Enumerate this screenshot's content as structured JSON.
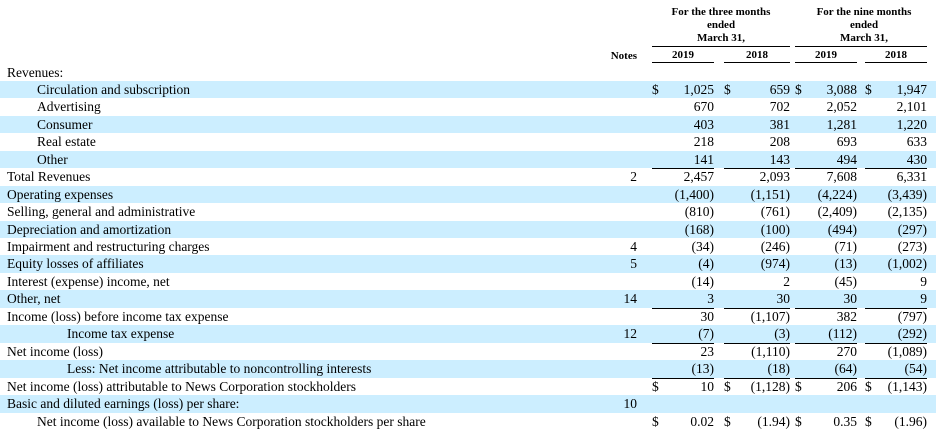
{
  "header": {
    "notes_label": "Notes",
    "periods": [
      {
        "line1": "For the three months",
        "line2": "ended",
        "line3": "March 31,",
        "years": [
          "2019",
          "2018"
        ]
      },
      {
        "line1": "For the nine months",
        "line2": "ended",
        "line3": "March 31,",
        "years": [
          "2019",
          "2018"
        ]
      }
    ]
  },
  "rows": [
    {
      "label": "Revenues:",
      "indent": 0,
      "note": "",
      "values": [
        "",
        "",
        "",
        ""
      ],
      "dollar": [
        false,
        false,
        false,
        false
      ],
      "ul": "none",
      "shaded": false
    },
    {
      "label": "Circulation and subscription",
      "indent": 1,
      "note": "",
      "values": [
        "1,025",
        "659",
        "3,088",
        "1,947"
      ],
      "dollar": [
        true,
        true,
        true,
        true
      ],
      "ul": "none",
      "shaded": true
    },
    {
      "label": "Advertising",
      "indent": 1,
      "note": "",
      "values": [
        "670",
        "702",
        "2,052",
        "2,101"
      ],
      "dollar": [
        false,
        false,
        false,
        false
      ],
      "ul": "none",
      "shaded": false
    },
    {
      "label": "Consumer",
      "indent": 1,
      "note": "",
      "values": [
        "403",
        "381",
        "1,281",
        "1,220"
      ],
      "dollar": [
        false,
        false,
        false,
        false
      ],
      "ul": "none",
      "shaded": true
    },
    {
      "label": "Real estate",
      "indent": 1,
      "note": "",
      "values": [
        "218",
        "208",
        "693",
        "633"
      ],
      "dollar": [
        false,
        false,
        false,
        false
      ],
      "ul": "none",
      "shaded": false
    },
    {
      "label": "Other",
      "indent": 1,
      "note": "",
      "values": [
        "141",
        "143",
        "494",
        "430"
      ],
      "dollar": [
        false,
        false,
        false,
        false
      ],
      "ul": "single",
      "shaded": true
    },
    {
      "label": "Total Revenues",
      "indent": 0,
      "note": "2",
      "values": [
        "2,457",
        "2,093",
        "7,608",
        "6,331"
      ],
      "dollar": [
        false,
        false,
        false,
        false
      ],
      "ul": "none",
      "shaded": false
    },
    {
      "label": "Operating expenses",
      "indent": 0,
      "note": "",
      "values": [
        "(1,400)",
        "(1,151)",
        "(4,224)",
        "(3,439)"
      ],
      "dollar": [
        false,
        false,
        false,
        false
      ],
      "ul": "none",
      "shaded": true
    },
    {
      "label": "Selling, general and administrative",
      "indent": 0,
      "note": "",
      "values": [
        "(810)",
        "(761)",
        "(2,409)",
        "(2,135)"
      ],
      "dollar": [
        false,
        false,
        false,
        false
      ],
      "ul": "none",
      "shaded": false
    },
    {
      "label": "Depreciation and amortization",
      "indent": 0,
      "note": "",
      "values": [
        "(168)",
        "(100)",
        "(494)",
        "(297)"
      ],
      "dollar": [
        false,
        false,
        false,
        false
      ],
      "ul": "none",
      "shaded": true
    },
    {
      "label": "Impairment and restructuring charges",
      "indent": 0,
      "note": "4",
      "values": [
        "(34)",
        "(246)",
        "(71)",
        "(273)"
      ],
      "dollar": [
        false,
        false,
        false,
        false
      ],
      "ul": "none",
      "shaded": false
    },
    {
      "label": "Equity losses of affiliates",
      "indent": 0,
      "note": "5",
      "values": [
        "(4)",
        "(974)",
        "(13)",
        "(1,002)"
      ],
      "dollar": [
        false,
        false,
        false,
        false
      ],
      "ul": "none",
      "shaded": true
    },
    {
      "label": "Interest (expense) income, net",
      "indent": 0,
      "note": "",
      "values": [
        "(14)",
        "2",
        "(45)",
        "9"
      ],
      "dollar": [
        false,
        false,
        false,
        false
      ],
      "ul": "none",
      "shaded": false
    },
    {
      "label": "Other, net",
      "indent": 0,
      "note": "14",
      "values": [
        "3",
        "30",
        "30",
        "9"
      ],
      "dollar": [
        false,
        false,
        false,
        false
      ],
      "ul": "single",
      "shaded": true
    },
    {
      "label": "Income (loss) before income tax expense",
      "indent": 0,
      "note": "",
      "values": [
        "30",
        "(1,107)",
        "382",
        "(797)"
      ],
      "dollar": [
        false,
        false,
        false,
        false
      ],
      "ul": "none",
      "shaded": false
    },
    {
      "label": "Income tax expense",
      "indent": 2,
      "note": "12",
      "values": [
        "(7)",
        "(3)",
        "(112)",
        "(292)"
      ],
      "dollar": [
        false,
        false,
        false,
        false
      ],
      "ul": "single",
      "shaded": true
    },
    {
      "label": "Net income (loss)",
      "indent": 0,
      "note": "",
      "values": [
        "23",
        "(1,110)",
        "270",
        "(1,089)"
      ],
      "dollar": [
        false,
        false,
        false,
        false
      ],
      "ul": "none",
      "shaded": false
    },
    {
      "label": "Less: Net income attributable to noncontrolling interests",
      "indent": 2,
      "note": "",
      "values": [
        "(13)",
        "(18)",
        "(64)",
        "(54)"
      ],
      "dollar": [
        false,
        false,
        false,
        false
      ],
      "ul": "single",
      "shaded": true
    },
    {
      "label": "Net income (loss) attributable to News Corporation stockholders",
      "indent": 0,
      "note": "",
      "values": [
        "10",
        "(1,128)",
        "206",
        "(1,143)"
      ],
      "dollar": [
        true,
        true,
        true,
        true
      ],
      "ul": "double",
      "shaded": false
    },
    {
      "label": "Basic and diluted earnings (loss) per share:",
      "indent": 0,
      "note": "10",
      "values": [
        "",
        "",
        "",
        ""
      ],
      "dollar": [
        false,
        false,
        false,
        false
      ],
      "ul": "none",
      "shaded": true
    },
    {
      "label": "Net income (loss) available to News Corporation stockholders per share",
      "indent": 1,
      "note": "",
      "values": [
        "0.02",
        "(1.94)",
        "0.35",
        "(1.96)"
      ],
      "dollar": [
        true,
        true,
        true,
        true
      ],
      "ul": "none",
      "shaded": false
    }
  ]
}
